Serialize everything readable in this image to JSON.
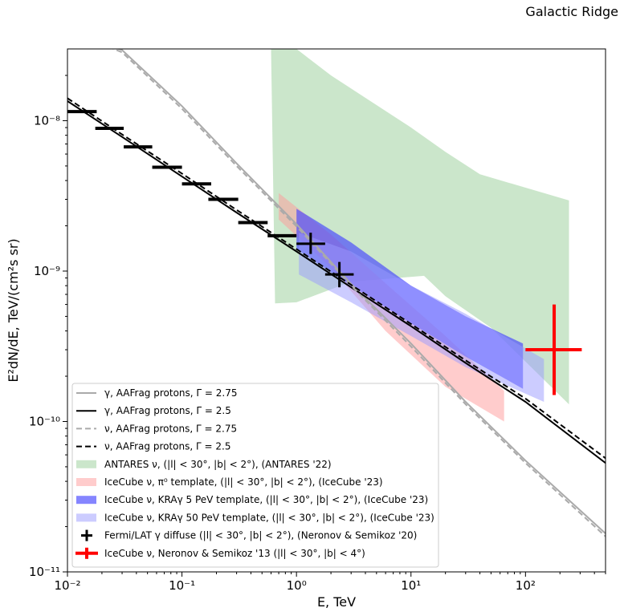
{
  "chart_data": {
    "type": "line",
    "title": "Galactic Ridge",
    "xlabel": "E, TeV",
    "ylabel": "E²dN/dE, TeV/(cm²s sr)",
    "xscale": "log",
    "yscale": "log",
    "xlim": [
      0.01,
      500
    ],
    "ylim": [
      1e-11,
      3e-08
    ],
    "xticks": [
      {
        "value": 0.01,
        "label": "10⁻²"
      },
      {
        "value": 0.1,
        "label": "10⁻¹"
      },
      {
        "value": 1,
        "label": "10⁰"
      },
      {
        "value": 10,
        "label": "10¹"
      },
      {
        "value": 100,
        "label": "10²"
      }
    ],
    "yticks": [
      {
        "value": 1e-11,
        "label": "10⁻¹¹"
      },
      {
        "value": 1e-10,
        "label": "10⁻¹⁰"
      },
      {
        "value": 1e-09,
        "label": "10⁻⁹"
      },
      {
        "value": 1e-08,
        "label": "10⁻⁸"
      }
    ],
    "grid": false,
    "legend_position": "lower-left",
    "lines": [
      {
        "key": "gamma275",
        "name": "γ, AAFrag protons, Γ = 2.75",
        "color": "#aaaaaa",
        "dash": "solid",
        "x": [
          0.01,
          0.03,
          0.1,
          0.3,
          1,
          3,
          10,
          30,
          100,
          500
        ],
        "y": [
          4e-08,
          2.95e-08,
          1.25e-08,
          5.2e-09,
          2.05e-09,
          8.2e-10,
          3.3e-10,
          1.35e-10,
          5.5e-11,
          1.8e-11
        ]
      },
      {
        "key": "gamma25",
        "name": "γ, AAFrag protons, Γ = 2.5",
        "color": "#000000",
        "dash": "solid",
        "x": [
          0.01,
          0.03,
          0.1,
          0.3,
          1,
          3,
          10,
          30,
          100,
          500
        ],
        "y": [
          1.35e-08,
          7.8e-09,
          4.25e-09,
          2.45e-09,
          1.35e-09,
          7.8e-10,
          4.3e-10,
          2.45e-10,
          1.35e-10,
          5.3e-11
        ]
      },
      {
        "key": "nu275",
        "name": "ν, AAFrag protons, Γ = 2.75",
        "color": "#aaaaaa",
        "dash": "dashed",
        "x": [
          0.01,
          0.03,
          0.1,
          0.3,
          1,
          3,
          10,
          30,
          100,
          500
        ],
        "y": [
          4e-08,
          2.85e-08,
          1.2e-08,
          5e-09,
          1.98e-09,
          8e-10,
          3.15e-10,
          1.3e-10,
          5.3e-11,
          1.72e-11
        ]
      },
      {
        "key": "nu25",
        "name": "ν, AAFrag protons, Γ = 2.5",
        "color": "#000000",
        "dash": "dashed",
        "x": [
          0.01,
          0.03,
          0.1,
          0.3,
          1,
          3,
          10,
          30,
          100,
          500
        ],
        "y": [
          1.41e-08,
          8.1e-09,
          4.45e-09,
          2.55e-09,
          1.4e-09,
          8.1e-10,
          4.45e-10,
          2.55e-10,
          1.42e-10,
          5.7e-11
        ]
      }
    ],
    "bands": [
      {
        "key": "antares",
        "name": "ANTARES ν, (|l| < 30°, |b| < 2°), (ANTARES '22)",
        "color": "#a8d5a8",
        "opacity": 0.6,
        "upper": [
          [
            0.6,
            3e-08
          ],
          [
            1.0,
            3e-08
          ],
          [
            2,
            2e-08
          ],
          [
            10,
            9e-09
          ],
          [
            20,
            6.2e-09
          ],
          [
            40,
            4.4e-09
          ],
          [
            240,
            2.95e-09
          ]
        ],
        "lower": [
          [
            0.65,
            6.1e-10
          ],
          [
            1.0,
            6.2e-10
          ],
          [
            3,
            8.5e-10
          ],
          [
            13,
            9.3e-10
          ],
          [
            20,
            6.8e-10
          ],
          [
            50,
            4.2e-10
          ],
          [
            240,
            1.3e-10
          ]
        ]
      },
      {
        "key": "pi0",
        "name": "IceCube ν, π⁰ template, (|l| < 30°, |b| < 2°), (IceCube '23)",
        "color": "#ff9999",
        "opacity": 0.5,
        "upper": [
          [
            0.7,
            3.3e-09
          ],
          [
            2,
            1.75e-09
          ],
          [
            6,
            8.3e-10
          ],
          [
            20,
            3.7e-10
          ],
          [
            65,
            1.6e-10
          ]
        ],
        "lower": [
          [
            0.7,
            2.2e-09
          ],
          [
            2,
            1.05e-09
          ],
          [
            6,
            4e-10
          ],
          [
            20,
            1.7e-10
          ],
          [
            65,
            1e-10
          ]
        ]
      },
      {
        "key": "kra5",
        "name": "IceCube ν, KRAγ 5 PeV template, (|l| < 30°, |b| < 2°), (IceCube '23)",
        "color": "#4444ff",
        "opacity": 0.65,
        "upper": [
          [
            1.0,
            2.6e-09
          ],
          [
            3,
            1.55e-09
          ],
          [
            10,
            8e-10
          ],
          [
            30,
            5e-10
          ],
          [
            95,
            3.3e-10
          ]
        ],
        "lower": [
          [
            1.0,
            1.4e-09
          ],
          [
            3,
            8e-10
          ],
          [
            10,
            4.5e-10
          ],
          [
            30,
            2.7e-10
          ],
          [
            95,
            1.65e-10
          ]
        ]
      },
      {
        "key": "kra50",
        "name": "IceCube ν, KRAγ 50 PeV template, (|l| < 30°, |b| < 2°), (IceCube '23)",
        "color": "#9999ff",
        "opacity": 0.5,
        "upper": [
          [
            1.05,
            1.8e-09
          ],
          [
            3,
            1.35e-09
          ],
          [
            10,
            8e-10
          ],
          [
            30,
            5.2e-10
          ],
          [
            145,
            2.6e-10
          ]
        ],
        "lower": [
          [
            1.05,
            9.5e-10
          ],
          [
            3,
            6.2e-10
          ],
          [
            10,
            3.7e-10
          ],
          [
            30,
            2.3e-10
          ],
          [
            145,
            1.35e-10
          ]
        ]
      }
    ],
    "step_points": [
      {
        "x0": 0.01,
        "x1": 0.018,
        "y": 1.15e-08
      },
      {
        "x0": 0.0175,
        "x1": 0.031,
        "y": 8.9e-09
      },
      {
        "x0": 0.031,
        "x1": 0.055,
        "y": 6.7e-09
      },
      {
        "x0": 0.055,
        "x1": 0.1,
        "y": 4.9e-09
      },
      {
        "x0": 0.1,
        "x1": 0.18,
        "y": 3.8e-09
      },
      {
        "x0": 0.17,
        "x1": 0.31,
        "y": 3e-09
      },
      {
        "x0": 0.31,
        "x1": 0.56,
        "y": 2.1e-09
      },
      {
        "x0": 0.56,
        "x1": 1.0,
        "y": 1.72e-09
      }
    ],
    "fermi_points": {
      "name": "Fermi/LAT γ diffuse (|l| < 30°, |b| < 2°), (Neronov & Semikoz '20)",
      "color": "#000000",
      "points": [
        {
          "x": 1.33,
          "xlow": 1.0,
          "xhigh": 1.78,
          "y": 1.52e-09,
          "ylow": 1.3e-09,
          "yhigh": 1.8e-09
        },
        {
          "x": 2.37,
          "xlow": 1.78,
          "xhigh": 3.16,
          "y": 9.5e-10,
          "ylow": 7.8e-10,
          "yhigh": 1.15e-09
        }
      ]
    },
    "icecube_ns13": {
      "name": "IceCube ν, Neronov & Semikoz '13 (|l| < 30°, |b| < 4°)",
      "color": "#ff0000",
      "x": 178,
      "xlow": 100,
      "xhigh": 310,
      "y": 3e-10,
      "ylow": 1.5e-10,
      "yhigh": 6e-10
    },
    "legend_order": [
      "gamma275",
      "gamma25",
      "nu275",
      "nu25",
      "antares",
      "pi0",
      "kra5",
      "kra50",
      "fermi",
      "ns13"
    ]
  }
}
